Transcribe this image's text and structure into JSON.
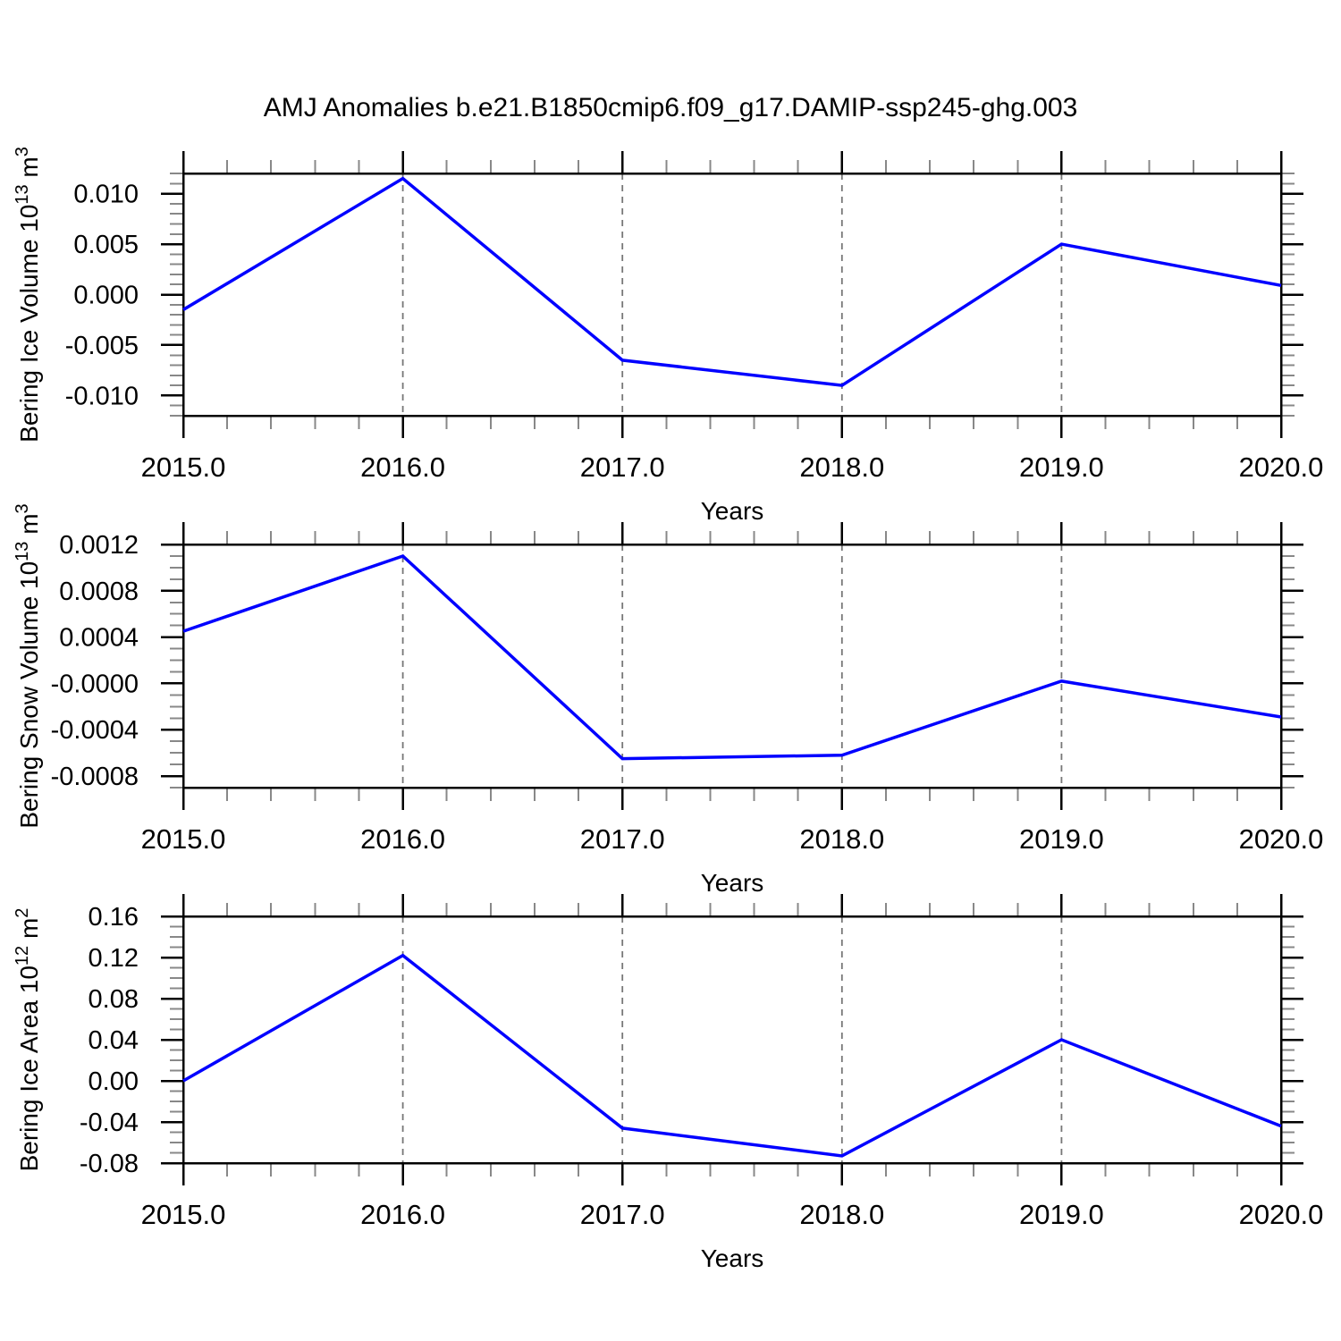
{
  "title": "AMJ Anomalies b.e21.B1850cmip6.f09_g17.DAMIP-ssp245-ghg.003",
  "colors": {
    "line": "#0000ff",
    "axis": "#000000",
    "major_tick": "#000000",
    "minor_tick": "#888888",
    "gridline": "#777777",
    "background": "#ffffff"
  },
  "chart_data": [
    {
      "type": "line",
      "name": "ice-volume",
      "ylabel": "Bering Ice Volume 10^13^ m^3^",
      "xlabel": "Years",
      "x": [
        2015,
        2016,
        2017,
        2018,
        2019,
        2020
      ],
      "x_tick_labels": [
        "2015.0",
        "2016.0",
        "2017.0",
        "2018.0",
        "2019.0",
        "2020.0"
      ],
      "x_minor_step": 0.2,
      "grid_x": [
        2016,
        2017,
        2018,
        2019
      ],
      "xlim": [
        2015,
        2020
      ],
      "ylim": [
        -0.012,
        0.012
      ],
      "y_major": [
        -0.01,
        -0.005,
        0.0,
        0.005,
        0.01
      ],
      "y_major_labels": [
        "-0.010",
        "-0.005",
        "0.000",
        "0.005",
        "0.010"
      ],
      "y_minor_step": 0.001,
      "grid": "x-dashed",
      "legend": "none",
      "series": [
        {
          "name": "AMJ anomaly",
          "values": [
            -0.0015,
            0.0115,
            -0.0065,
            -0.009,
            0.005,
            0.0009
          ]
        }
      ]
    },
    {
      "type": "line",
      "name": "snow-volume",
      "ylabel": "Bering Snow Volume 10^13^ m^3^",
      "xlabel": "Years",
      "x": [
        2015,
        2016,
        2017,
        2018,
        2019,
        2020
      ],
      "x_tick_labels": [
        "2015.0",
        "2016.0",
        "2017.0",
        "2018.0",
        "2019.0",
        "2020.0"
      ],
      "x_minor_step": 0.2,
      "grid_x": [
        2016,
        2017,
        2018,
        2019
      ],
      "xlim": [
        2015,
        2020
      ],
      "ylim": [
        -0.0009,
        0.0012
      ],
      "y_major": [
        -0.0008,
        -0.0004,
        0.0,
        0.0004,
        0.0008,
        0.0012
      ],
      "y_major_labels": [
        "-0.0008",
        "-0.0004",
        "-0.0000",
        "0.0004",
        "0.0008",
        "0.0012"
      ],
      "y_minor_step": 0.0001,
      "grid": "x-dashed",
      "legend": "none",
      "series": [
        {
          "name": "AMJ anomaly",
          "values": [
            0.00045,
            0.0011,
            -0.00065,
            -0.00062,
            2e-05,
            -0.00029
          ]
        }
      ]
    },
    {
      "type": "line",
      "name": "ice-area",
      "ylabel": "Bering Ice Area 10^12^ m^2^",
      "xlabel": "Years",
      "x": [
        2015,
        2016,
        2017,
        2018,
        2019,
        2020
      ],
      "x_tick_labels": [
        "2015.0",
        "2016.0",
        "2017.0",
        "2018.0",
        "2019.0",
        "2020.0"
      ],
      "x_minor_step": 0.2,
      "grid_x": [
        2016,
        2017,
        2018,
        2019
      ],
      "xlim": [
        2015,
        2020
      ],
      "ylim": [
        -0.08,
        0.16
      ],
      "y_major": [
        -0.08,
        -0.04,
        0.0,
        0.04,
        0.08,
        0.12,
        0.16
      ],
      "y_major_labels": [
        "-0.08",
        "-0.04",
        "0.00",
        "0.04",
        "0.08",
        "0.12",
        "0.16"
      ],
      "y_minor_step": 0.01,
      "grid": "x-dashed",
      "legend": "none",
      "series": [
        {
          "name": "AMJ anomaly",
          "values": [
            0.0,
            0.122,
            -0.046,
            -0.073,
            0.04,
            -0.044
          ]
        }
      ]
    }
  ]
}
